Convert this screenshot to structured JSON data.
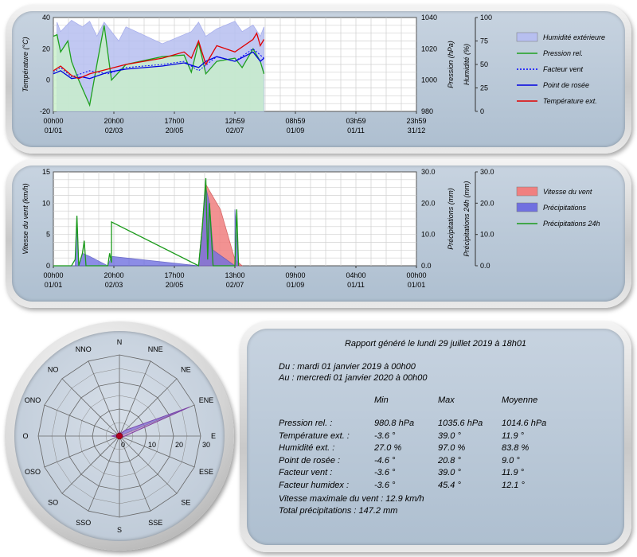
{
  "colors": {
    "humidity_fill": "#b7bff0",
    "humidity_line": "#9aa2ea",
    "pressure": "#1fa01f",
    "pressure_fill": "#c8f0c8",
    "wind_factor": "#0000ff",
    "dew_point": "#0000e0",
    "temperature": "#e00000",
    "wind_speed_fill": "#f08080",
    "precip_fill": "#7070e0",
    "precip24": "#1a9a1a"
  },
  "chart_data": [
    {
      "type": "line",
      "id": "weather-chart",
      "x_ticks": [
        [
          "00h00",
          "01/01"
        ],
        [
          "20h00",
          "02/03"
        ],
        [
          "17h00",
          "20/05"
        ],
        [
          "12h59",
          "02/07"
        ],
        [
          "08h59",
          "01/09"
        ],
        [
          "03h59",
          "01/11"
        ],
        [
          "23h59",
          "31/12"
        ]
      ],
      "y_left": {
        "label": "Température (°C)",
        "ylim": [
          -20,
          40
        ],
        "ticks": [
          "-20",
          "0",
          "20",
          "40"
        ]
      },
      "y_right1": {
        "label": "Pression (hPa)",
        "ylim": [
          980,
          1040
        ],
        "ticks": [
          "980",
          "1000",
          "1020",
          "1040"
        ]
      },
      "y_right2": {
        "label": "Humidité (%)",
        "ylim": [
          0,
          100
        ],
        "ticks": [
          "0",
          "25",
          "50",
          "75",
          "100"
        ]
      },
      "grid": true,
      "legend_position": "right",
      "series": [
        {
          "name": "Humidité extérieure",
          "x": [
            0.01,
            0.02,
            0.05,
            0.08,
            0.1,
            0.12,
            0.14,
            0.18,
            0.2,
            0.3,
            0.38,
            0.4,
            0.42,
            0.45,
            0.5,
            0.52,
            0.55,
            0.57,
            0.58
          ],
          "values": [
            95,
            85,
            97,
            90,
            96,
            80,
            95,
            75,
            90,
            72,
            85,
            95,
            80,
            88,
            96,
            85,
            92,
            80,
            90
          ]
        },
        {
          "name": "Pression rel.",
          "x": [
            0.0,
            0.01,
            0.02,
            0.04,
            0.05,
            0.07,
            0.1,
            0.12,
            0.14,
            0.16,
            0.2,
            0.3,
            0.36,
            0.38,
            0.4,
            0.42,
            0.45,
            0.5,
            0.52,
            0.55,
            0.57,
            0.58
          ],
          "values": [
            1028,
            1029,
            1018,
            1025,
            1012,
            1000,
            984,
            1010,
            1035,
            1000,
            1010,
            1015,
            1016,
            1005,
            1024,
            1004,
            1012,
            1014,
            1008,
            1020,
            1012,
            1004
          ]
        },
        {
          "name": "Facteur vent",
          "x": [
            0.0,
            0.02,
            0.05,
            0.1,
            0.15,
            0.2,
            0.3,
            0.36,
            0.4,
            0.45,
            0.5,
            0.55,
            0.58
          ],
          "values": [
            5,
            8,
            2,
            6,
            4,
            8,
            10,
            12,
            6,
            15,
            12,
            20,
            14
          ]
        },
        {
          "name": "Point de rosée",
          "x": [
            0.0,
            0.02,
            0.05,
            0.08,
            0.1,
            0.15,
            0.2,
            0.3,
            0.36,
            0.4,
            0.42,
            0.45,
            0.5,
            0.55,
            0.57,
            0.58
          ],
          "values": [
            4,
            6,
            1,
            2,
            1,
            5,
            7,
            9,
            11,
            8,
            12,
            15,
            12,
            18,
            12,
            14
          ]
        },
        {
          "name": "Température ext.",
          "x": [
            0.0,
            0.02,
            0.05,
            0.07,
            0.1,
            0.15,
            0.2,
            0.3,
            0.36,
            0.38,
            0.4,
            0.42,
            0.45,
            0.5,
            0.55,
            0.56,
            0.57,
            0.58
          ],
          "values": [
            6,
            9,
            3,
            1,
            4,
            7,
            10,
            14,
            18,
            14,
            25,
            10,
            22,
            18,
            26,
            30,
            22,
            26
          ]
        }
      ]
    },
    {
      "type": "area",
      "id": "wind-rain-chart",
      "x_ticks": [
        [
          "00h00",
          "01/01"
        ],
        [
          "20h00",
          "02/03"
        ],
        [
          "17h00",
          "20/05"
        ],
        [
          "13h00",
          "02/07"
        ],
        [
          "09h00",
          "01/09"
        ],
        [
          "04h00",
          "01/11"
        ],
        [
          "00h00",
          "01/01"
        ]
      ],
      "y_left": {
        "label": "Vitesse du vent (km/h)",
        "ylim": [
          0,
          15
        ],
        "ticks": [
          "0",
          "5",
          "10",
          "15"
        ]
      },
      "y_right1": {
        "label": "Précipitations (mm)",
        "ylim": [
          0,
          30
        ],
        "ticks": [
          "0.0",
          "10.0",
          "20.0",
          "30.0"
        ]
      },
      "y_right2": {
        "label": "Précipitations 24h (mm)",
        "ylim": [
          0,
          30
        ],
        "ticks": [
          "0.0",
          "10.0",
          "20.0",
          "30.0"
        ]
      },
      "grid": true,
      "legend_position": "right",
      "series": [
        {
          "name": "Vitesse du vent",
          "x": [
            0.4,
            0.42,
            0.44,
            0.46,
            0.5,
            0.52
          ],
          "values": [
            0,
            13,
            11,
            9,
            1,
            0
          ]
        },
        {
          "name": "Précipitations",
          "x": [
            0.0,
            0.06,
            0.065,
            0.07,
            0.08,
            0.1,
            0.15,
            0.16,
            0.4,
            0.42,
            0.43,
            0.44,
            0.5,
            0.5,
            0.51
          ],
          "values": [
            0,
            0,
            16,
            0,
            4,
            3,
            0,
            3,
            0,
            25,
            20,
            5,
            0,
            18,
            0
          ]
        },
        {
          "name": "Précipitations 24h",
          "x": [
            0.0,
            0.05,
            0.06,
            0.065,
            0.07,
            0.08,
            0.085,
            0.09,
            0.15,
            0.155,
            0.16,
            0.16,
            0.4,
            0.41,
            0.42,
            0.425,
            0.43,
            0.44,
            0.5,
            0.505,
            0.51
          ],
          "values": [
            0,
            0,
            2,
            16,
            0,
            4,
            8,
            0,
            0,
            4,
            1,
            14,
            0,
            12,
            28,
            2,
            20,
            0,
            0,
            18,
            0
          ]
        }
      ]
    },
    {
      "type": "radar",
      "id": "wind-rose",
      "directions": [
        "N",
        "NNE",
        "NE",
        "ENE",
        "E",
        "ESE",
        "SE",
        "SSE",
        "S",
        "SSO",
        "SO",
        "OSO",
        "O",
        "ONO",
        "NO",
        "NNO"
      ],
      "r_ticks": [
        "0",
        "10",
        "20",
        "30"
      ],
      "rlim": [
        0,
        30
      ],
      "values": [
        2,
        1,
        3,
        28,
        2,
        1,
        0,
        0,
        0,
        0,
        0,
        1,
        3,
        1,
        0,
        0
      ]
    }
  ],
  "report": {
    "title": "Rapport généré le lundi 29 juillet 2019 à 18h01",
    "from": "Du : mardi 01 janvier 2019 à 00h00",
    "to": "Au : mercredi 01 janvier 2020 à 00h00",
    "headers": [
      "Min",
      "Max",
      "Moyenne"
    ],
    "rows": [
      {
        "label": "Pression rel. :",
        "min": "980.8 hPa",
        "max": "1035.6 hPa",
        "avg": "1014.6 hPa"
      },
      {
        "label": "Température ext. :",
        "min": "-3.6 °",
        "max": "39.0 °",
        "avg": "11.9 °"
      },
      {
        "label": "Humidité ext. :",
        "min": "27.0 %",
        "max": "97.0 %",
        "avg": "83.8 %"
      },
      {
        "label": "Point de rosée :",
        "min": "-4.6 °",
        "max": "20.8 °",
        "avg": "9.0 °"
      },
      {
        "label": "Facteur vent :",
        "min": "-3.6 °",
        "max": "39.0 °",
        "avg": "11.9 °"
      },
      {
        "label": "Facteur humidex :",
        "min": "-3.6 °",
        "max": "45.4 °",
        "avg": "12.1 °"
      }
    ],
    "max_wind": "Vitesse maximale du vent : 12.9 km/h",
    "total_precip": "Total précipitations : 147.2 mm"
  }
}
